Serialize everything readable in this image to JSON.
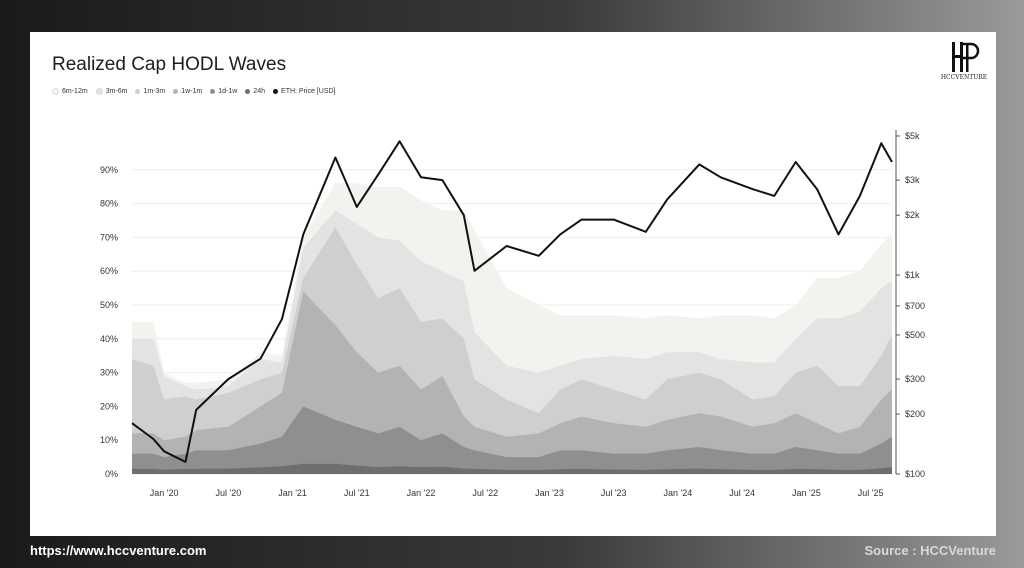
{
  "header": {
    "source_url": "https://www.hccventure.com",
    "source_credit": "Source : HCCVenture"
  },
  "brand": {
    "logo_text": "HCCVENTURE"
  },
  "chart_data": {
    "type": "area",
    "title": "Realized Cap HODL Waves",
    "legend_placement": "top-left",
    "grid": true,
    "x_ticks": [
      "Jan '20",
      "Jul '20",
      "Jan '21",
      "Jul '21",
      "Jan '22",
      "Jul '22",
      "Jan '23",
      "Jul '23",
      "Jan '24",
      "Jul '24",
      "Jan '25",
      "Jul '25"
    ],
    "y_left": {
      "ticks": [
        "0%",
        "10%",
        "20%",
        "30%",
        "40%",
        "50%",
        "60%",
        "70%",
        "80%",
        "90%"
      ],
      "ylim": [
        0,
        100
      ]
    },
    "y_right": {
      "scale": "log",
      "ticks": [
        "$100",
        "$200",
        "$300",
        "$500",
        "$700",
        "$1k",
        "$2k",
        "$3k",
        "$5k"
      ],
      "tick_values": [
        100,
        200,
        300,
        500,
        700,
        1000,
        2000,
        3000,
        5000
      ],
      "ylim": [
        100,
        5000
      ]
    },
    "x": [
      "2019-10",
      "2019-12",
      "2020-01",
      "2020-03",
      "2020-04",
      "2020-07",
      "2020-10",
      "2020-12",
      "2021-02",
      "2021-05",
      "2021-07",
      "2021-09",
      "2021-11",
      "2022-01",
      "2022-03",
      "2022-05",
      "2022-06",
      "2022-09",
      "2022-12",
      "2023-02",
      "2023-04",
      "2023-07",
      "2023-10",
      "2023-12",
      "2024-03",
      "2024-05",
      "2024-08",
      "2024-10",
      "2024-12",
      "2025-02",
      "2025-04",
      "2025-06",
      "2025-08",
      "2025-09"
    ],
    "series": [
      {
        "name": "6m-12m",
        "color": "#f1f3ee",
        "values": [
          45,
          45,
          30,
          27,
          27,
          28,
          36,
          35,
          70,
          86,
          86,
          85,
          85,
          81,
          78,
          78,
          72,
          55,
          50,
          47,
          47,
          47,
          46,
          47,
          46,
          47,
          47,
          46,
          50,
          58,
          58,
          60,
          68,
          71
        ]
      },
      {
        "name": "3m-6m",
        "color": "#e3e3e3",
        "values": [
          40,
          40,
          29,
          26,
          25,
          26,
          34,
          33,
          67,
          78,
          74,
          70,
          69,
          63,
          60,
          57,
          42,
          32,
          30,
          32,
          34,
          35,
          34,
          36,
          36,
          34,
          33,
          33,
          40,
          46,
          46,
          48,
          55,
          57
        ]
      },
      {
        "name": "1m-3m",
        "color": "#cfcfcf",
        "values": [
          34,
          32,
          22,
          23,
          22,
          24,
          28,
          30,
          58,
          73,
          62,
          52,
          55,
          45,
          46,
          40,
          28,
          22,
          18,
          25,
          28,
          25,
          22,
          28,
          30,
          28,
          22,
          23,
          30,
          32,
          26,
          26,
          35,
          41
        ]
      },
      {
        "name": "1w-1m",
        "color": "#b3b3b3",
        "values": [
          12,
          12,
          10,
          11,
          13,
          14,
          20,
          24,
          54,
          44,
          36,
          30,
          32,
          25,
          29,
          17,
          14,
          11,
          12,
          15,
          17,
          15,
          14,
          16,
          18,
          17,
          14,
          15,
          18,
          15,
          12,
          14,
          22,
          25
        ]
      },
      {
        "name": "1d-1w",
        "color": "#8f8f8f",
        "values": [
          6,
          6,
          5,
          6,
          7,
          7,
          9,
          11,
          20,
          16,
          14,
          12,
          14,
          10,
          12,
          8,
          7,
          5,
          5,
          7,
          7,
          6,
          6,
          7,
          8,
          7,
          6,
          6,
          8,
          7,
          6,
          6,
          9,
          11
        ]
      },
      {
        "name": "24h",
        "color": "#6e6e6e",
        "values": [
          1.5,
          1.5,
          1.2,
          1.5,
          1.5,
          1.6,
          2,
          2.3,
          3,
          3,
          2.5,
          2,
          2.3,
          2,
          2.2,
          1.6,
          1.5,
          1.2,
          1.2,
          1.4,
          1.5,
          1.3,
          1.2,
          1.4,
          1.6,
          1.4,
          1.2,
          1.2,
          1.5,
          1.4,
          1.2,
          1.2,
          1.7,
          2
        ]
      },
      {
        "name": "ETH: Price [USD]",
        "color": "#111111",
        "axis": "right",
        "values": [
          180,
          150,
          130,
          115,
          210,
          300,
          380,
          600,
          1600,
          3900,
          2200,
          3200,
          4700,
          3100,
          3000,
          2000,
          1050,
          1400,
          1250,
          1600,
          1900,
          1900,
          1650,
          2400,
          3600,
          3100,
          2700,
          2500,
          3700,
          2700,
          1600,
          2500,
          4600,
          3700
        ]
      }
    ]
  }
}
